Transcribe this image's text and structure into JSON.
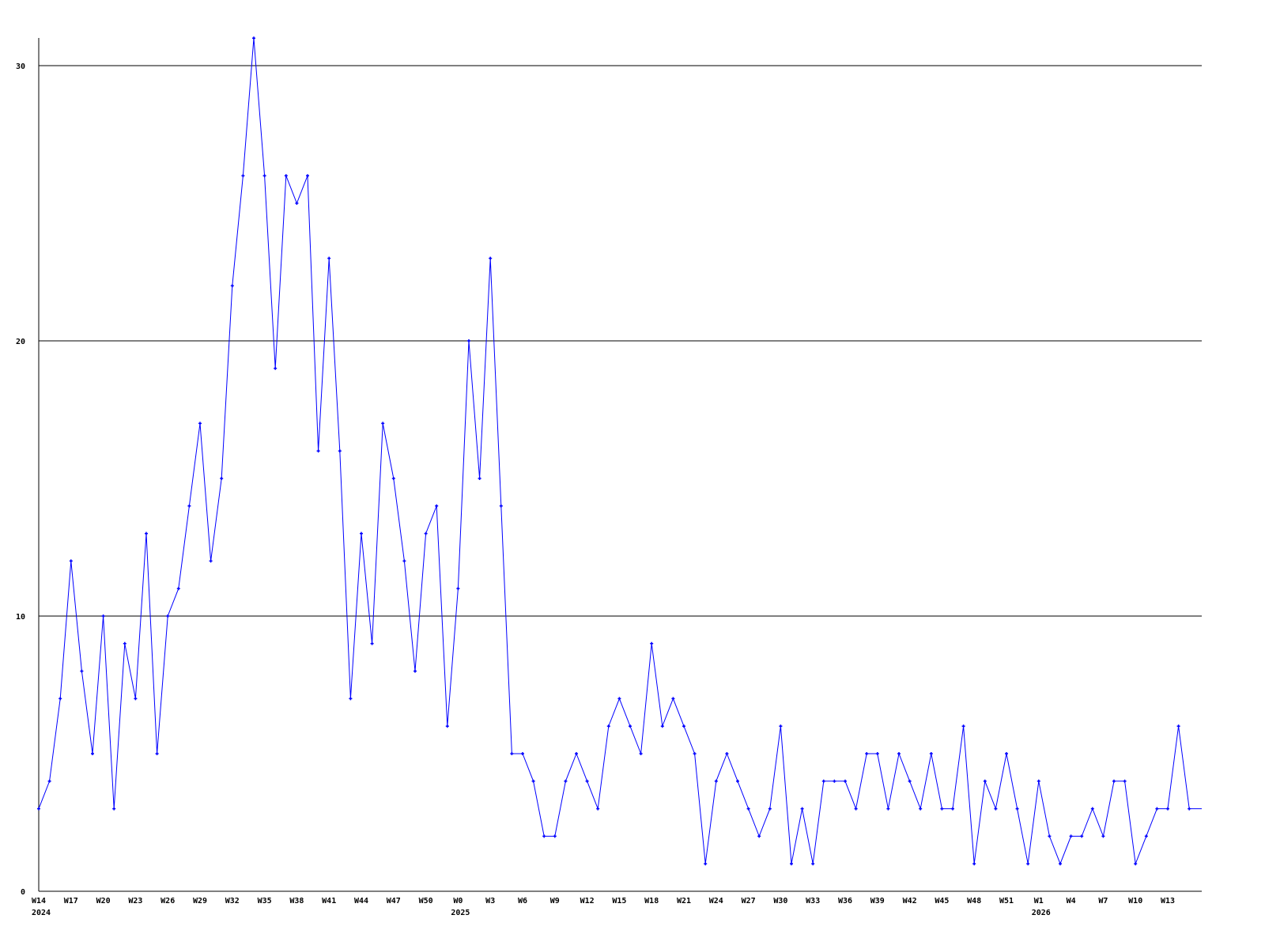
{
  "chart_data": {
    "type": "line",
    "title": "",
    "xlabel": "",
    "ylabel": "",
    "ylim": [
      0,
      31
    ],
    "y_ticks": [
      "0",
      "10",
      "20",
      "30"
    ],
    "grid": "horizontal",
    "line_color": "#0000ff",
    "grid_color": "#000000",
    "series_by_year": [
      {
        "year": "2024",
        "first_week": 14,
        "values": [
          3,
          4,
          7,
          12,
          8,
          5,
          10,
          3,
          9,
          7,
          13,
          5,
          10,
          11,
          14,
          17,
          12,
          15,
          22,
          26,
          31,
          26,
          19,
          26,
          25,
          26,
          16,
          23,
          16,
          7,
          13,
          9,
          17,
          15,
          12,
          8,
          13,
          14,
          6
        ]
      },
      {
        "year": "2025",
        "first_week": 0,
        "values": [
          11,
          20,
          15,
          23,
          14,
          5,
          5,
          4,
          2,
          2,
          4,
          5,
          4,
          3,
          6,
          7,
          6,
          5,
          9,
          6,
          7,
          6,
          5,
          1,
          4,
          5,
          4,
          3,
          2,
          3,
          6,
          1,
          3,
          1,
          4,
          4,
          4,
          3,
          5,
          5,
          3,
          5,
          4,
          3,
          5,
          3,
          3,
          6,
          1,
          4,
          3,
          5,
          3
        ]
      },
      {
        "year": "2026",
        "first_week": 0,
        "values": [
          1,
          4,
          2,
          1,
          2,
          2,
          3,
          2,
          4,
          4,
          1,
          2,
          3,
          3,
          6,
          3,
          3
        ]
      }
    ],
    "x_tick_labels": [
      {
        "year": "2024",
        "labels": [
          "W14",
          "W17",
          "W20",
          "W23",
          "W26",
          "W29",
          "W32",
          "W35",
          "W38",
          "W41",
          "W44",
          "W47",
          "W50"
        ]
      },
      {
        "year": "2025",
        "labels": [
          "W0",
          "W3",
          "W6",
          "W9",
          "W12",
          "W15",
          "W18",
          "W21",
          "W24",
          "W27",
          "W30",
          "W33",
          "W36",
          "W39",
          "W42",
          "W45",
          "W48",
          "W51"
        ]
      },
      {
        "year": "2026",
        "labels": [
          "W1",
          "W4",
          "W7",
          "W10",
          "W13"
        ]
      }
    ]
  }
}
